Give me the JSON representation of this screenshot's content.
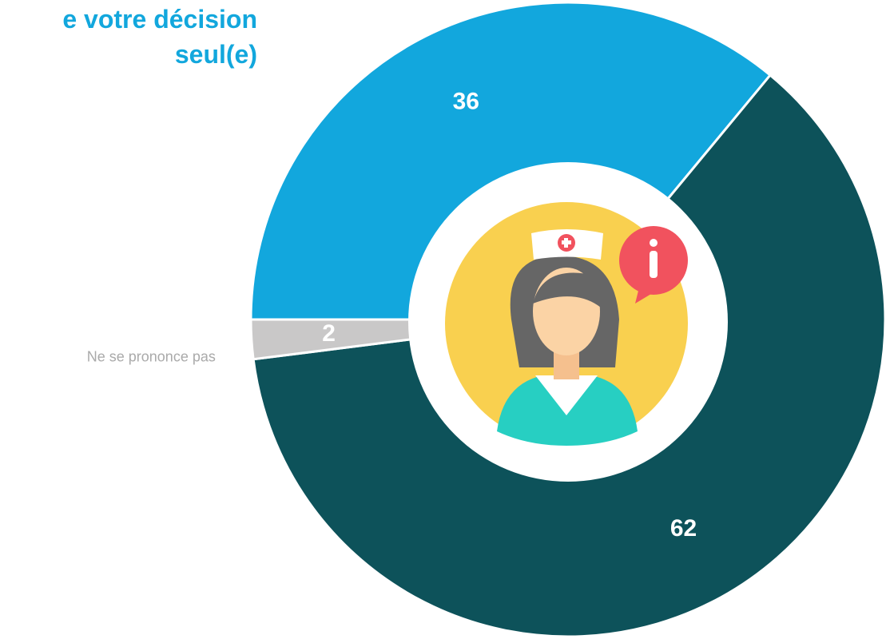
{
  "chart_data": {
    "type": "donut",
    "title": "e votre décision seul(e)",
    "categories": [
      null,
      null,
      "Ne se prononce pas"
    ],
    "values": [
      36,
      62,
      2
    ],
    "colors": [
      "#12a7dd",
      "#0d525a",
      "#c9c8c8"
    ]
  }
}
